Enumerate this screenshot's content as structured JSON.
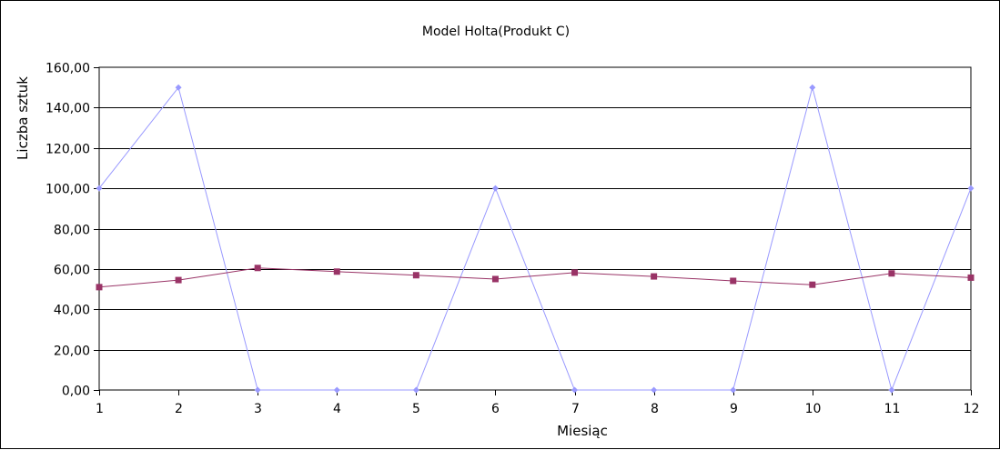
{
  "chart_data": {
    "type": "line",
    "title": "Model Holta(Produkt C)",
    "xlabel": "Miesiąc",
    "ylabel": "Liczba sztuk",
    "x": [
      1,
      2,
      3,
      4,
      5,
      6,
      7,
      8,
      9,
      10,
      11,
      12
    ],
    "x_tick_labels": [
      "1",
      "2",
      "3",
      "4",
      "5",
      "6",
      "7",
      "8",
      "9",
      "10",
      "11",
      "12"
    ],
    "ylim": [
      0,
      160
    ],
    "y_ticks": [
      0,
      20,
      40,
      60,
      80,
      100,
      120,
      140,
      160
    ],
    "y_tick_labels": [
      "0,00",
      "20,00",
      "40,00",
      "60,00",
      "80,00",
      "100,00",
      "120,00",
      "140,00",
      "160,00"
    ],
    "grid": true,
    "legend": "none",
    "series": [
      {
        "values": [
          100,
          150,
          0,
          0,
          0,
          100,
          0,
          0,
          0,
          150,
          0,
          100
        ],
        "color": "#9999ff",
        "marker": "diamond"
      },
      {
        "values": [
          51,
          54.5,
          60.5,
          58.7,
          56.9,
          55,
          58.2,
          56.3,
          54.1,
          52.2,
          57.8,
          55.7
        ],
        "color": "#993366",
        "marker": "square"
      }
    ]
  }
}
